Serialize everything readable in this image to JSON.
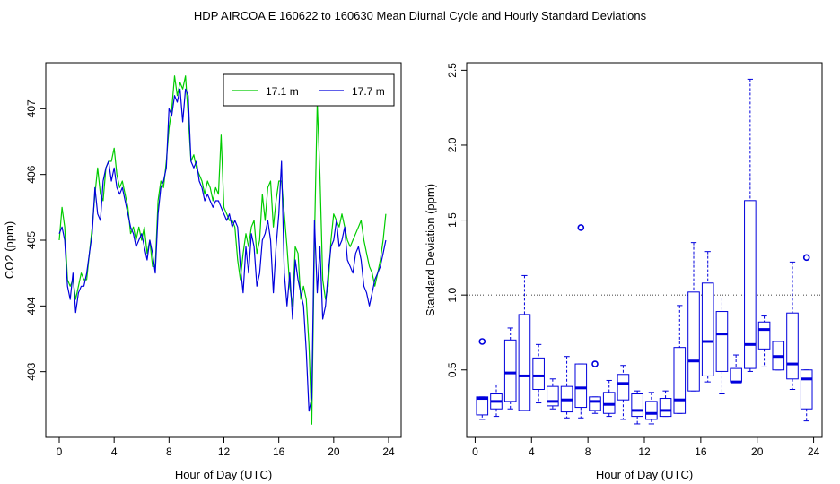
{
  "page_title": "HDP   AIRCOA E   160622 to 160630   Mean Diurnal Cycle and Hourly Standard Deviations",
  "chart_data": [
    {
      "type": "line",
      "xlabel": "Hour of Day (UTC)",
      "ylabel": "CO2 (ppm)",
      "xlim": [
        0,
        24
      ],
      "ylim": [
        402.0,
        407.7
      ],
      "x_ticks": [
        0,
        4,
        8,
        12,
        16,
        20,
        24
      ],
      "y_ticks": [
        403,
        404,
        405,
        406,
        407
      ],
      "legend": {
        "position": "top-right"
      },
      "series": [
        {
          "name": "17.1 m",
          "color": "#00cc00",
          "x": [
            0.0,
            0.2,
            0.4,
            0.6,
            0.8,
            1.0,
            1.2,
            1.4,
            1.6,
            1.8,
            2.0,
            2.2,
            2.4,
            2.6,
            2.8,
            3.0,
            3.2,
            3.4,
            3.6,
            3.8,
            4.0,
            4.2,
            4.4,
            4.6,
            4.8,
            5.0,
            5.2,
            5.4,
            5.6,
            5.8,
            6.0,
            6.2,
            6.4,
            6.6,
            6.8,
            7.0,
            7.2,
            7.4,
            7.6,
            7.8,
            8.0,
            8.2,
            8.4,
            8.6,
            8.8,
            9.0,
            9.2,
            9.4,
            9.6,
            9.8,
            10.0,
            10.2,
            10.4,
            10.6,
            10.8,
            11.0,
            11.2,
            11.4,
            11.6,
            11.8,
            12.0,
            12.2,
            12.4,
            12.6,
            12.8,
            13.0,
            13.2,
            13.4,
            13.6,
            13.8,
            14.0,
            14.2,
            14.4,
            14.6,
            14.8,
            15.0,
            15.2,
            15.4,
            15.6,
            15.8,
            16.0,
            16.2,
            16.4,
            16.6,
            16.8,
            17.0,
            17.2,
            17.4,
            17.6,
            17.8,
            18.0,
            18.2,
            18.4,
            18.6,
            18.8,
            19.0,
            19.2,
            19.4,
            19.6,
            19.8,
            20.0,
            20.2,
            20.4,
            20.6,
            20.8,
            21.0,
            21.2,
            21.4,
            21.6,
            21.8,
            22.0,
            22.2,
            22.4,
            22.6,
            22.8,
            23.0,
            23.2,
            23.4,
            23.6,
            23.8
          ],
          "values": [
            405.0,
            405.5,
            405.2,
            404.4,
            404.3,
            404.4,
            404.1,
            404.3,
            404.5,
            404.4,
            404.4,
            404.8,
            405.2,
            405.7,
            406.1,
            405.7,
            405.6,
            406.1,
            406.2,
            406.2,
            406.4,
            406.0,
            405.8,
            405.9,
            405.7,
            405.5,
            405.1,
            405.2,
            405.0,
            405.2,
            405.0,
            405.2,
            404.8,
            405.0,
            404.6,
            404.6,
            405.6,
            405.9,
            405.8,
            406.2,
            406.7,
            407.0,
            407.5,
            407.2,
            407.4,
            407.3,
            407.5,
            406.9,
            406.2,
            406.3,
            406.1,
            406.0,
            405.9,
            405.7,
            405.9,
            405.8,
            405.6,
            405.8,
            405.7,
            406.6,
            405.5,
            405.4,
            405.3,
            405.3,
            405.2,
            404.7,
            404.4,
            404.8,
            405.1,
            404.9,
            405.2,
            405.3,
            404.8,
            405.0,
            405.7,
            405.3,
            405.8,
            405.9,
            405.2,
            405.6,
            405.9,
            405.9,
            405.4,
            404.9,
            404.3,
            404.0,
            404.9,
            404.8,
            404.1,
            404.3,
            404.1,
            403.4,
            402.2,
            405.0,
            407.1,
            406.0,
            404.4,
            404.1,
            404.3,
            405.0,
            405.4,
            405.3,
            405.2,
            405.4,
            405.2,
            405.0,
            404.9,
            405.0,
            405.1,
            405.2,
            405.3,
            405.0,
            404.8,
            404.6,
            404.5,
            404.3,
            404.5,
            404.7,
            405.0,
            405.4
          ]
        },
        {
          "name": "17.7 m",
          "color": "#0000dd",
          "x": [
            0.0,
            0.2,
            0.4,
            0.6,
            0.8,
            1.0,
            1.2,
            1.4,
            1.6,
            1.8,
            2.0,
            2.2,
            2.4,
            2.6,
            2.8,
            3.0,
            3.2,
            3.4,
            3.6,
            3.8,
            4.0,
            4.2,
            4.4,
            4.6,
            4.8,
            5.0,
            5.2,
            5.4,
            5.6,
            5.8,
            6.0,
            6.2,
            6.4,
            6.6,
            6.8,
            7.0,
            7.2,
            7.4,
            7.6,
            7.8,
            8.0,
            8.2,
            8.4,
            8.6,
            8.8,
            9.0,
            9.2,
            9.4,
            9.6,
            9.8,
            10.0,
            10.2,
            10.4,
            10.6,
            10.8,
            11.0,
            11.2,
            11.4,
            11.6,
            11.8,
            12.0,
            12.2,
            12.4,
            12.6,
            12.8,
            13.0,
            13.2,
            13.4,
            13.6,
            13.8,
            14.0,
            14.2,
            14.4,
            14.6,
            14.8,
            15.0,
            15.2,
            15.4,
            15.6,
            15.8,
            16.0,
            16.2,
            16.4,
            16.6,
            16.8,
            17.0,
            17.2,
            17.4,
            17.6,
            17.8,
            18.0,
            18.2,
            18.4,
            18.6,
            18.8,
            19.0,
            19.2,
            19.4,
            19.6,
            19.8,
            20.0,
            20.2,
            20.4,
            20.6,
            20.8,
            21.0,
            21.2,
            21.4,
            21.6,
            21.8,
            22.0,
            22.2,
            22.4,
            22.6,
            22.8,
            23.0,
            23.2,
            23.4,
            23.6,
            23.8
          ],
          "values": [
            405.1,
            405.2,
            405.0,
            404.3,
            404.1,
            404.5,
            403.9,
            404.2,
            404.3,
            404.3,
            404.5,
            404.8,
            405.1,
            405.8,
            405.4,
            405.3,
            405.9,
            406.1,
            406.2,
            405.9,
            406.1,
            405.8,
            405.7,
            405.8,
            405.6,
            405.4,
            405.2,
            405.1,
            404.9,
            405.0,
            405.1,
            404.9,
            404.7,
            405.0,
            404.8,
            404.5,
            405.4,
            405.8,
            405.9,
            406.1,
            407.0,
            406.9,
            407.2,
            407.1,
            407.3,
            406.8,
            407.3,
            407.2,
            406.2,
            406.1,
            406.2,
            405.9,
            405.8,
            405.6,
            405.7,
            405.6,
            405.5,
            405.6,
            405.6,
            405.5,
            405.4,
            405.3,
            405.4,
            405.2,
            405.3,
            405.2,
            404.6,
            404.2,
            404.9,
            404.5,
            405.1,
            404.9,
            404.3,
            404.5,
            405.0,
            405.1,
            405.3,
            405.0,
            404.2,
            404.9,
            405.4,
            406.2,
            404.5,
            404.0,
            404.5,
            403.8,
            404.7,
            404.4,
            404.2,
            404.0,
            403.3,
            402.4,
            402.6,
            405.3,
            404.2,
            404.9,
            403.8,
            404.0,
            404.5,
            404.9,
            405.0,
            405.3,
            404.9,
            405.0,
            405.2,
            404.7,
            404.6,
            404.5,
            404.8,
            404.9,
            404.7,
            404.3,
            404.2,
            404.0,
            404.2,
            404.4,
            404.5,
            404.6,
            404.8,
            405.0
          ]
        }
      ]
    },
    {
      "type": "box",
      "xlabel": "Hour of Day (UTC)",
      "ylabel": "Standard Deviation (ppm)",
      "xlim": [
        -0.6,
        24.6
      ],
      "ylim": [
        0.05,
        2.55
      ],
      "x_ticks": [
        0,
        4,
        8,
        12,
        16,
        20,
        24
      ],
      "y_ticks": [
        "0.5",
        "1.0",
        "1.5",
        "2.0",
        "2.5"
      ],
      "reference_line": 1.0,
      "color": "#0000dd",
      "boxes": [
        {
          "hour": 0.5,
          "q1": 0.2,
          "median": 0.31,
          "q3": 0.32,
          "lo": 0.17,
          "hi": 0.32,
          "outliers": [
            0.69
          ]
        },
        {
          "hour": 1.5,
          "q1": 0.24,
          "median": 0.29,
          "q3": 0.34,
          "lo": 0.19,
          "hi": 0.4,
          "outliers": []
        },
        {
          "hour": 2.5,
          "q1": 0.29,
          "median": 0.48,
          "q3": 0.7,
          "lo": 0.24,
          "hi": 0.78,
          "outliers": []
        },
        {
          "hour": 3.5,
          "q1": 0.23,
          "median": 0.46,
          "q3": 0.87,
          "lo": 0.23,
          "hi": 1.13,
          "outliers": []
        },
        {
          "hour": 4.5,
          "q1": 0.37,
          "median": 0.46,
          "q3": 0.58,
          "lo": 0.28,
          "hi": 0.67,
          "outliers": []
        },
        {
          "hour": 5.5,
          "q1": 0.26,
          "median": 0.29,
          "q3": 0.39,
          "lo": 0.24,
          "hi": 0.44,
          "outliers": []
        },
        {
          "hour": 6.5,
          "q1": 0.22,
          "median": 0.3,
          "q3": 0.39,
          "lo": 0.18,
          "hi": 0.59,
          "outliers": []
        },
        {
          "hour": 7.5,
          "q1": 0.25,
          "median": 0.38,
          "q3": 0.54,
          "lo": 0.18,
          "hi": 0.54,
          "outliers": [
            1.45
          ]
        },
        {
          "hour": 8.5,
          "q1": 0.23,
          "median": 0.29,
          "q3": 0.32,
          "lo": 0.21,
          "hi": 0.32,
          "outliers": [
            0.54
          ]
        },
        {
          "hour": 9.5,
          "q1": 0.21,
          "median": 0.27,
          "q3": 0.35,
          "lo": 0.19,
          "hi": 0.43,
          "outliers": []
        },
        {
          "hour": 10.5,
          "q1": 0.3,
          "median": 0.41,
          "q3": 0.47,
          "lo": 0.17,
          "hi": 0.53,
          "outliers": []
        },
        {
          "hour": 11.5,
          "q1": 0.19,
          "median": 0.23,
          "q3": 0.34,
          "lo": 0.14,
          "hi": 0.36,
          "outliers": []
        },
        {
          "hour": 12.5,
          "q1": 0.17,
          "median": 0.21,
          "q3": 0.29,
          "lo": 0.14,
          "hi": 0.35,
          "outliers": []
        },
        {
          "hour": 13.5,
          "q1": 0.19,
          "median": 0.23,
          "q3": 0.31,
          "lo": 0.19,
          "hi": 0.36,
          "outliers": []
        },
        {
          "hour": 14.5,
          "q1": 0.21,
          "median": 0.3,
          "q3": 0.65,
          "lo": 0.21,
          "hi": 0.93,
          "outliers": []
        },
        {
          "hour": 15.5,
          "q1": 0.36,
          "median": 0.56,
          "q3": 1.02,
          "lo": 0.36,
          "hi": 1.35,
          "outliers": []
        },
        {
          "hour": 16.5,
          "q1": 0.46,
          "median": 0.69,
          "q3": 1.08,
          "lo": 0.42,
          "hi": 1.29,
          "outliers": []
        },
        {
          "hour": 17.5,
          "q1": 0.49,
          "median": 0.74,
          "q3": 0.89,
          "lo": 0.34,
          "hi": 0.98,
          "outliers": []
        },
        {
          "hour": 18.5,
          "q1": 0.42,
          "median": 0.42,
          "q3": 0.51,
          "lo": 0.42,
          "hi": 0.6,
          "outliers": []
        },
        {
          "hour": 19.5,
          "q1": 0.51,
          "median": 0.67,
          "q3": 1.63,
          "lo": 0.49,
          "hi": 2.44,
          "outliers": []
        },
        {
          "hour": 20.5,
          "q1": 0.64,
          "median": 0.77,
          "q3": 0.82,
          "lo": 0.52,
          "hi": 0.86,
          "outliers": []
        },
        {
          "hour": 21.5,
          "q1": 0.5,
          "median": 0.59,
          "q3": 0.69,
          "lo": 0.5,
          "hi": 0.69,
          "outliers": []
        },
        {
          "hour": 22.5,
          "q1": 0.44,
          "median": 0.54,
          "q3": 0.88,
          "lo": 0.37,
          "hi": 1.22,
          "outliers": []
        },
        {
          "hour": 23.5,
          "q1": 0.24,
          "median": 0.44,
          "q3": 0.5,
          "lo": 0.16,
          "hi": 0.5,
          "outliers": [
            1.25
          ]
        }
      ]
    }
  ]
}
